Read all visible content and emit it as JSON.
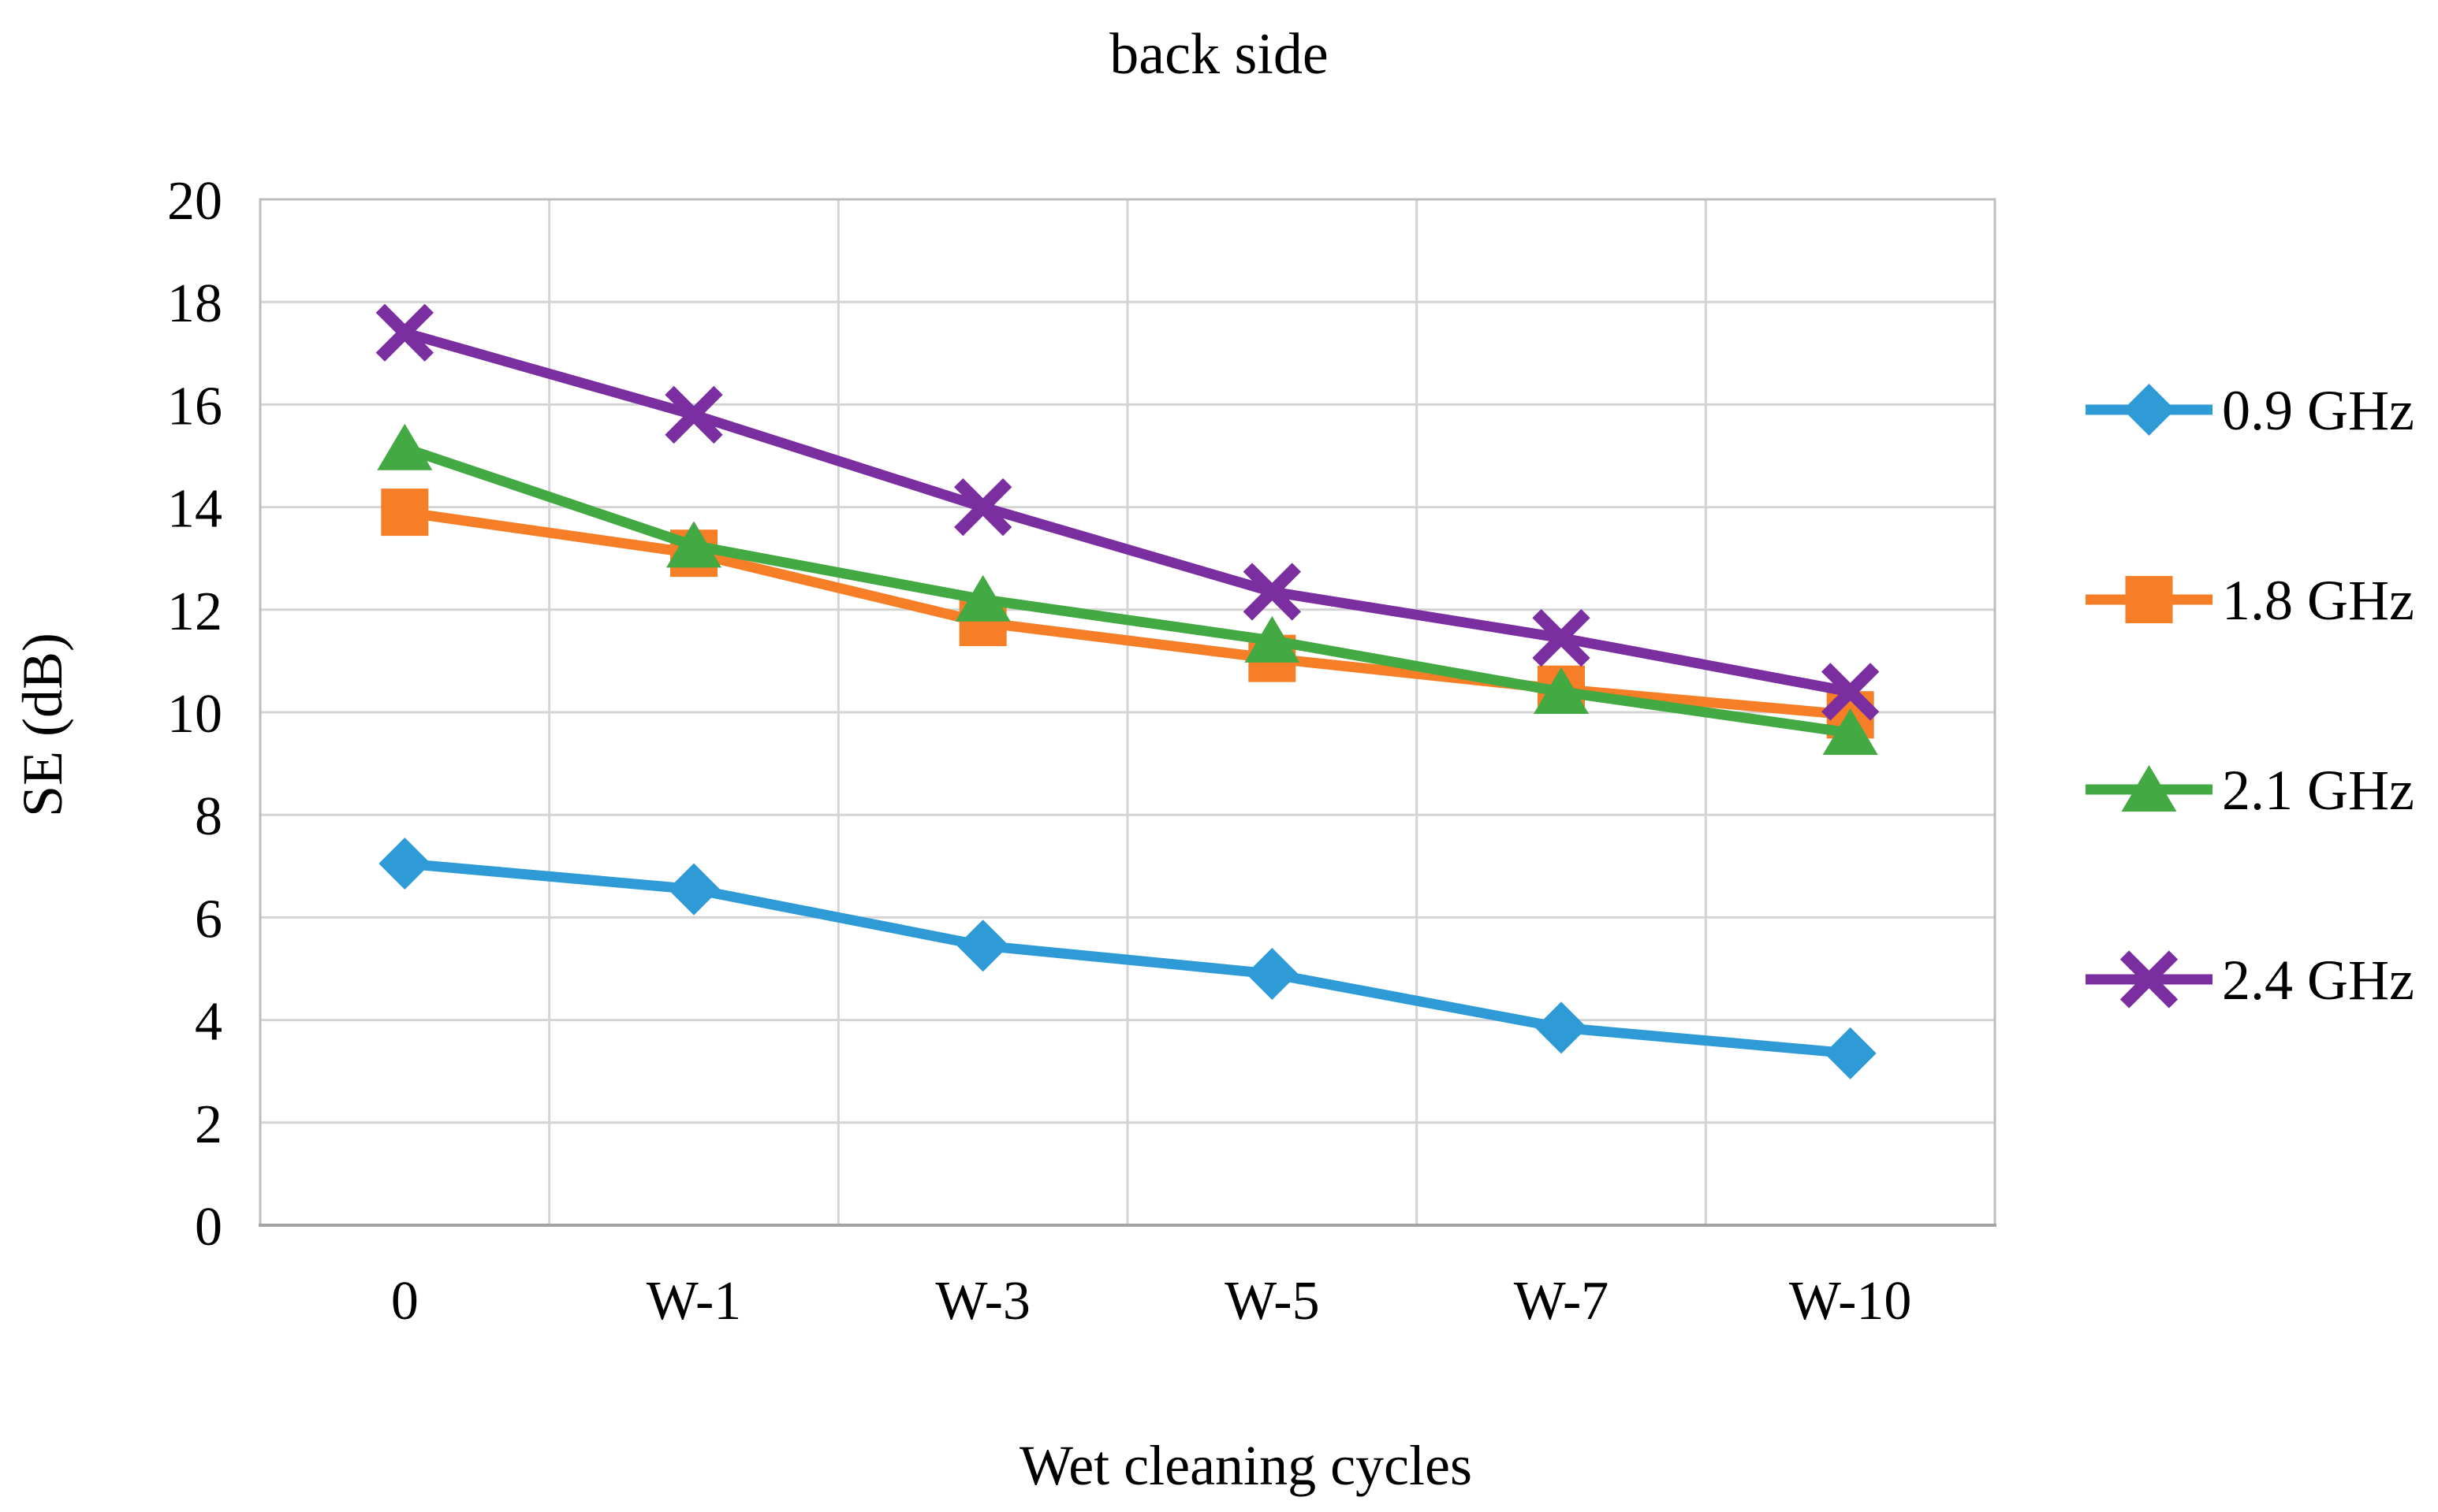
{
  "chart_data": {
    "type": "line",
    "title": "back side",
    "xlabel": "Wet cleaning cycles",
    "ylabel": "SE (dB)",
    "ylim": [
      0,
      20
    ],
    "y_ticks": [
      0,
      2,
      4,
      6,
      8,
      10,
      12,
      14,
      16,
      18,
      20
    ],
    "categories": [
      "0",
      "W-1",
      "W-3",
      "W-5",
      "W-7",
      "W-10"
    ],
    "grid": "on",
    "legend_position": "right",
    "series": [
      {
        "name": "0.9 GHz",
        "marker": "diamond",
        "color": "#2E9BD6",
        "values": [
          7.05,
          6.55,
          5.45,
          4.9,
          3.85,
          3.35
        ]
      },
      {
        "name": "1.8 GHz",
        "marker": "square",
        "color": "#F57E27",
        "values": [
          13.9,
          13.1,
          11.75,
          11.05,
          10.45,
          9.95
        ]
      },
      {
        "name": "2.1 GHz",
        "marker": "triangle",
        "color": "#43A943",
        "values": [
          15.15,
          13.25,
          12.2,
          11.4,
          10.4,
          9.6
        ]
      },
      {
        "name": "2.4 GHz",
        "marker": "x",
        "color": "#7A2EA0",
        "values": [
          17.4,
          15.8,
          14.0,
          12.35,
          11.45,
          10.4
        ]
      }
    ]
  }
}
